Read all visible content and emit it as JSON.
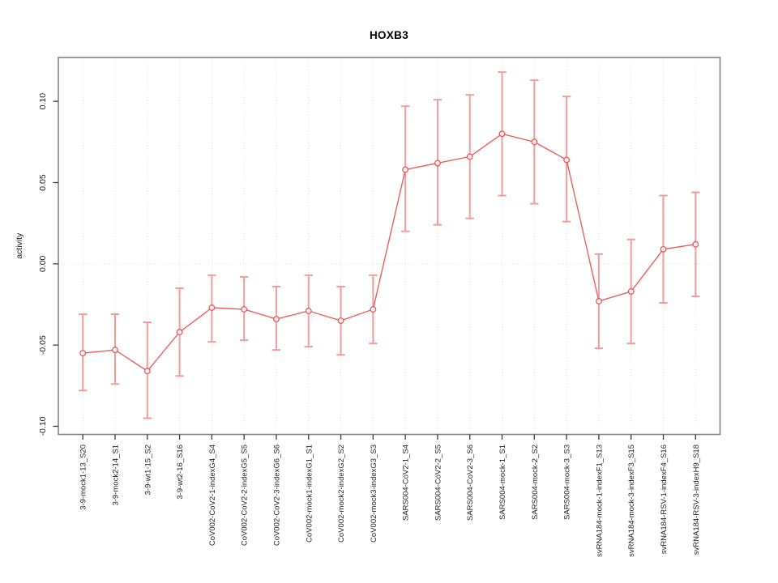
{
  "chart_data": {
    "type": "line",
    "title": "HOXB3",
    "xlabel": "",
    "ylabel": "activity",
    "ylim": [
      -0.105,
      0.127
    ],
    "yticks": [
      -0.1,
      -0.05,
      0.0,
      0.05,
      0.1
    ],
    "ytick_labels": [
      "-0.10",
      "-0.05",
      "0.00",
      "0.05",
      "0.10"
    ],
    "grid": "vertical dotted gridline per category; dotted horizontal line at y=0",
    "legend": "none",
    "marker": "open-circle",
    "categories": [
      "3-9-mock1-13_S20",
      "3-9-mock2-14_S1",
      "3-9-wt1-15_S2",
      "3-9-wt2-16_S16",
      "CoV002-CoV2-1-indexG4_S4",
      "CoV002-CoV2-2-indexG5_S5",
      "CoV002-CoV2-3-indexG6_S6",
      "CoV002-mock1-indexG1_S1",
      "CoV002-mock2-indexG2_S2",
      "CoV002-mock3-indexG3_S3",
      "SARS004-CoV2-1_S4",
      "SARS004-CoV2-2_S5",
      "SARS004-CoV2-3_S6",
      "SARS004-mock-1_S1",
      "SARS004-mock-2_S2",
      "SARS004-mock-3_S3",
      "svRNA184-mock-1-indexF1_S13",
      "svRNA184-mock-3-indexF3_S15",
      "svRNA184-RSV-1-indexF4_S16",
      "svRNA184-RSV-3-indexH9_S18"
    ],
    "series": [
      {
        "name": "activity",
        "values": [
          -0.055,
          -0.053,
          -0.066,
          -0.042,
          -0.027,
          -0.028,
          -0.034,
          -0.029,
          -0.035,
          -0.028,
          0.058,
          0.062,
          0.066,
          0.08,
          0.075,
          0.064,
          -0.023,
          -0.017,
          0.009,
          0.012
        ],
        "err_low": [
          -0.078,
          -0.074,
          -0.095,
          -0.069,
          -0.048,
          -0.047,
          -0.053,
          -0.051,
          -0.056,
          -0.049,
          0.02,
          0.024,
          0.028,
          0.042,
          0.037,
          0.026,
          -0.052,
          -0.049,
          -0.024,
          -0.02
        ],
        "err_high": [
          -0.031,
          -0.031,
          -0.036,
          -0.015,
          -0.007,
          -0.008,
          -0.014,
          -0.007,
          -0.014,
          -0.007,
          0.097,
          0.101,
          0.104,
          0.118,
          0.113,
          0.103,
          0.006,
          0.015,
          0.042,
          0.044
        ]
      }
    ],
    "colors": {
      "line": "#ec5f5f",
      "marker": "#e85a5a",
      "error_bar": "#f59c9c",
      "grid": "#dedede",
      "frame": "#838383",
      "tick": "#3c3c3c",
      "tick_label": "#1f1f1f",
      "title": "#000000"
    }
  }
}
